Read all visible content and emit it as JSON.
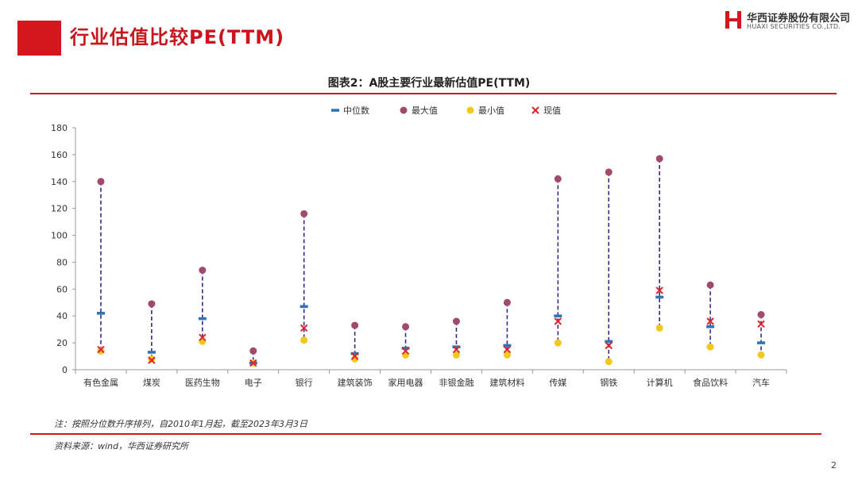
{
  "header": {
    "title": "行业估值比较PE(TTM)"
  },
  "logo": {
    "name_cn": "华西证券股份有限公司",
    "name_en": "HUAXI SECURITIES CO.,LTD."
  },
  "figure": {
    "title": "图表2：A股主要行业最新估值PE(TTM)"
  },
  "colors": {
    "median": "#2e75b6",
    "max": "#a04a6e",
    "min": "#f2c81e",
    "current": "#e0242b",
    "range_line": "#3b2a8a",
    "brand_red": "#d4171d"
  },
  "chart_data": {
    "type": "scatter",
    "categories": [
      "有色金属",
      "煤炭",
      "医药生物",
      "电子",
      "银行",
      "建筑装饰",
      "家用电器",
      "非银金融",
      "建筑材料",
      "传媒",
      "钢铁",
      "计算机",
      "食品饮料",
      "汽车"
    ],
    "series": [
      {
        "name": "中位数",
        "marker": "dash",
        "values": [
          42,
          13,
          38,
          5,
          47,
          12,
          16,
          17,
          18,
          40,
          21,
          54,
          32,
          20
        ]
      },
      {
        "name": "最大值",
        "marker": "circle",
        "values": [
          140,
          49,
          74,
          14,
          116,
          33,
          32,
          36,
          50,
          142,
          147,
          157,
          63,
          41
        ]
      },
      {
        "name": "最小值",
        "marker": "circle",
        "values": [
          14,
          8,
          21,
          5,
          22,
          8,
          11,
          11,
          11,
          20,
          6,
          31,
          17,
          11
        ]
      },
      {
        "name": "现值",
        "marker": "x",
        "values": [
          15,
          7,
          24,
          5,
          31,
          10,
          14,
          15,
          15,
          36,
          18,
          59,
          36,
          34
        ]
      }
    ],
    "ylim": [
      0,
      180
    ],
    "yticks": [
      0,
      20,
      40,
      60,
      80,
      100,
      120,
      140,
      160,
      180
    ],
    "legend_position": "top-center",
    "grid": false
  },
  "footer": {
    "note": "注：按照分位数升序排列，自2010年1月起，截至2023年3月3日",
    "source": "资料来源：wind，华西证券研究所",
    "page_number": "2"
  }
}
